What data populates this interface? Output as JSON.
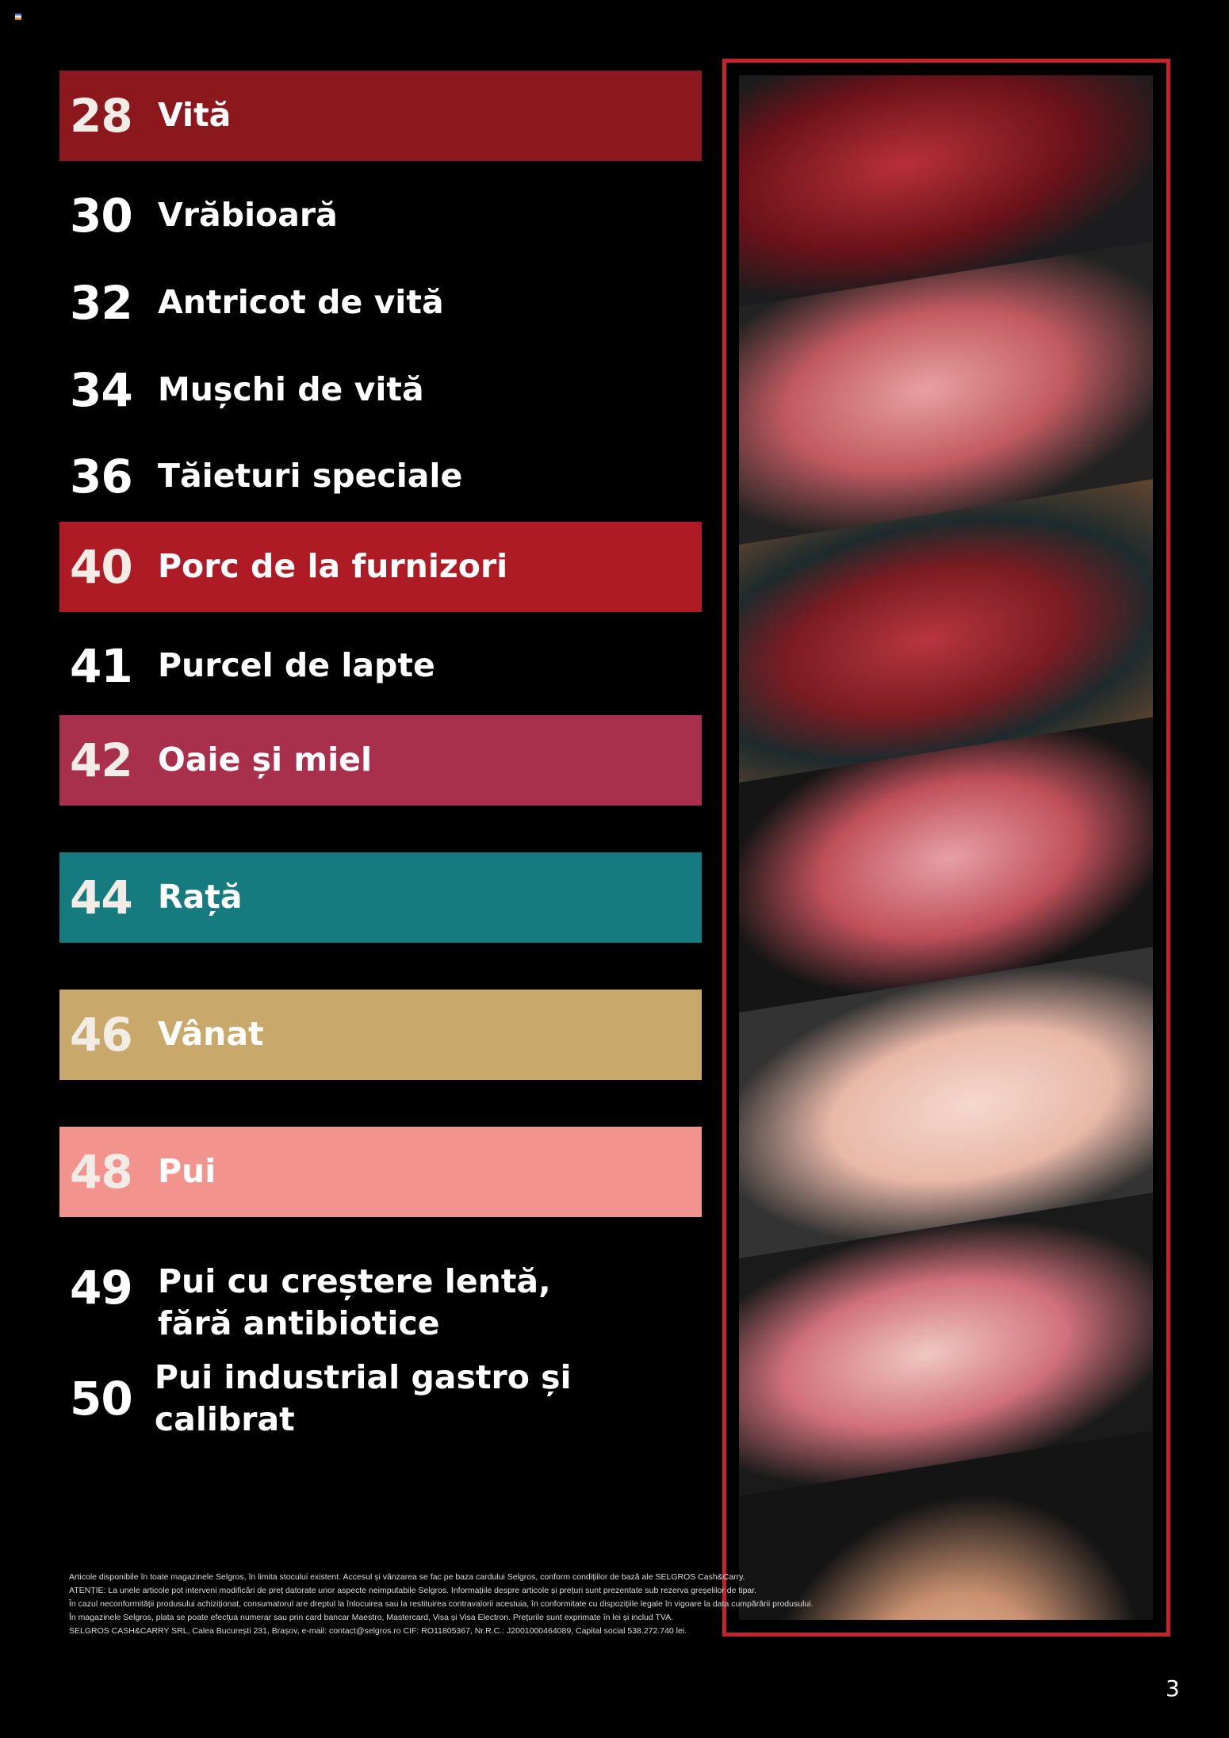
{
  "contents": [
    {
      "page": "28",
      "label": "Vită",
      "color": "#8c181d"
    },
    {
      "page": "30",
      "label": "Vrăbioară",
      "color": null
    },
    {
      "page": "32",
      "label": "Antricot de vită",
      "color": null
    },
    {
      "page": "34",
      "label": "Mușchi de vită",
      "color": null
    },
    {
      "page": "36",
      "label": "Tăieturi speciale",
      "color": null
    },
    {
      "page": "40",
      "label": "Porc de la furnizori",
      "color": "#ae1b25"
    },
    {
      "page": "41",
      "label": "Purcel de lapte",
      "color": null
    },
    {
      "page": "42",
      "label": "Oaie și miel",
      "color": "#a8304d"
    },
    {
      "page": "44",
      "label": "Rață",
      "color": "#167b7f"
    },
    {
      "page": "46",
      "label": "Vânat",
      "color": "#c8a96b"
    },
    {
      "page": "48",
      "label": "Pui",
      "color": "#f2948d"
    },
    {
      "page": "49",
      "label": "Pui cu creștere lentă,",
      "label2": "fără antibiotice",
      "color": null
    },
    {
      "page": "50",
      "label": "Pui industrial gastro și calibrat",
      "color": null
    }
  ],
  "footer": [
    "Articole disponibile în toate magazinele Selgros, în limita stocului existent. Accesul și vânzarea se fac pe baza cardului Selgros, conform condițiilor de bază ale SELGROS Cash&Carry.",
    "ATENȚIE: La unele articole pot interveni modificări de preț datorate unor aspecte neimputabile Selgros. Informațiile despre articole și prețuri sunt prezentate sub rezerva greșelilor de tipar.",
    "În cazul neconformității produsului achiziționat, consumatorul are dreptul la înlocuirea sau la restituirea contravalorii acestuia, în conformitate cu dispozițiile legale în vigoare la data cumpărării produsului.",
    "În magazinele Selgros, plata se poate efectua numerar sau prin card bancar Maestro, Mastercard, Visa și Visa Electron. Prețurile sunt exprimate în lei și includ TVA.",
    "SELGROS CASH&CARRY SRL, Calea București 231, Brașov, e-mail: contact@selgros.ro CIF: RO11805367, Nr.R.C.: J2001000464089, Capital social 538.272.740 lei."
  ],
  "page_number": "3",
  "frame_color": "#c4232b"
}
